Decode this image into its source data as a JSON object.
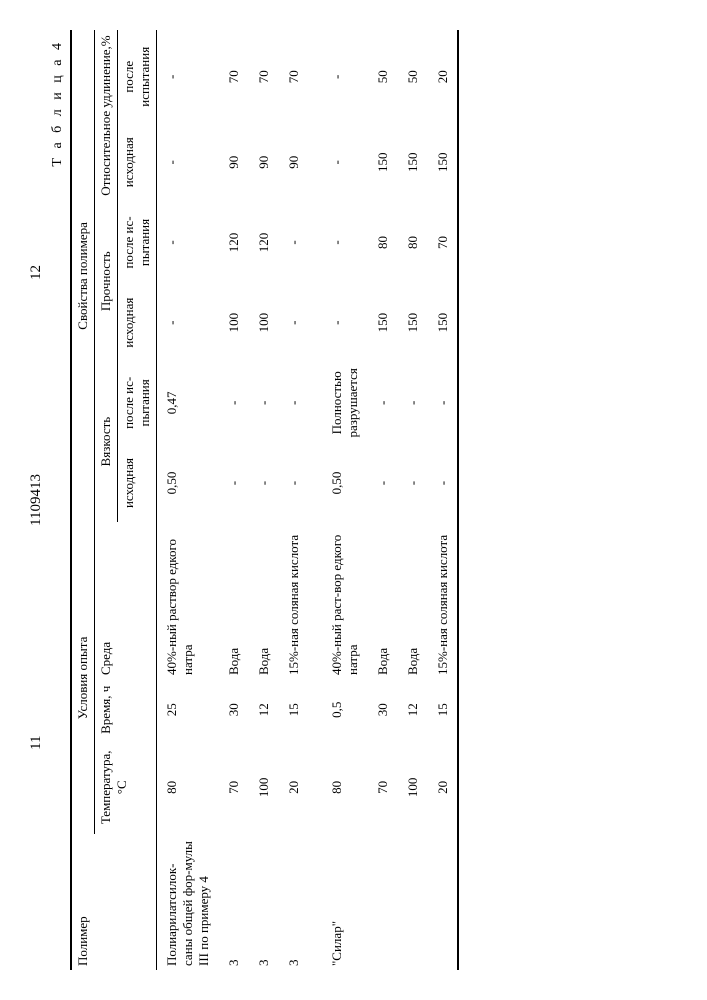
{
  "doc_id": "1109413",
  "page_left": "11",
  "page_right": "12",
  "table_label": "Т а б л и ц а 4",
  "headers": {
    "polymer": "Полимер",
    "conditions": "Условия опыта",
    "properties": "Свойства полимера",
    "temperature": "Температура, °С",
    "time": "Время, ч",
    "medium": "Среда",
    "viscosity": "Вязкость",
    "strength": "Прочность",
    "elongation": "Относительное удлинение,%",
    "initial": "исходная",
    "after": "после испытания",
    "after_short": "после ис-пытания"
  },
  "labels": {
    "polymer1": "Полиарилатсилок-саны общей фор-мулы III по примеру 4",
    "polymer2": "\"Силар\"",
    "m_naoh": "40%-ный раствор едкого натра",
    "m_naoh2": "40%-ный раст-вор едкого натра",
    "m_water": "Вода",
    "m_hcl": "15%-ная соляная кислота",
    "destroyed": "Полностью разрушается"
  },
  "rows1": [
    {
      "n": "",
      "t": "80",
      "time": "25",
      "med": "m_naoh",
      "vi": "0,50",
      "va": "0,47",
      "si": "-",
      "sa": "-",
      "ei": "-",
      "ea": "-"
    },
    {
      "n": "3",
      "t": "70",
      "time": "30",
      "med": "m_water",
      "vi": "-",
      "va": "-",
      "si": "100",
      "sa": "120",
      "ei": "90",
      "ea": "70"
    },
    {
      "n": "3",
      "t": "100",
      "time": "12",
      "med": "m_water",
      "vi": "-",
      "va": "-",
      "si": "100",
      "sa": "120",
      "ei": "90",
      "ea": "70"
    },
    {
      "n": "3",
      "t": "20",
      "time": "15",
      "med": "m_hcl",
      "vi": "-",
      "va": "-",
      "si": "-",
      "sa": "-",
      "ei": "90",
      "ea": "70"
    }
  ],
  "rows2": [
    {
      "t": "80",
      "time": "0,5",
      "med": "m_naoh2",
      "vi": "0,50",
      "dest": true,
      "si": "-",
      "sa": "-",
      "ei": "-",
      "ea": "-"
    },
    {
      "t": "70",
      "time": "30",
      "med": "m_water",
      "vi": "-",
      "dest": false,
      "si": "150",
      "sa": "80",
      "ei": "150",
      "ea": "50"
    },
    {
      "t": "100",
      "time": "12",
      "med": "m_water",
      "vi": "-",
      "dest": false,
      "si": "150",
      "sa": "80",
      "ei": "150",
      "ea": "50"
    },
    {
      "t": "20",
      "time": "15",
      "med": "m_hcl",
      "vi": "-",
      "dest": false,
      "si": "150",
      "sa": "70",
      "ei": "150",
      "ea": "20"
    }
  ]
}
